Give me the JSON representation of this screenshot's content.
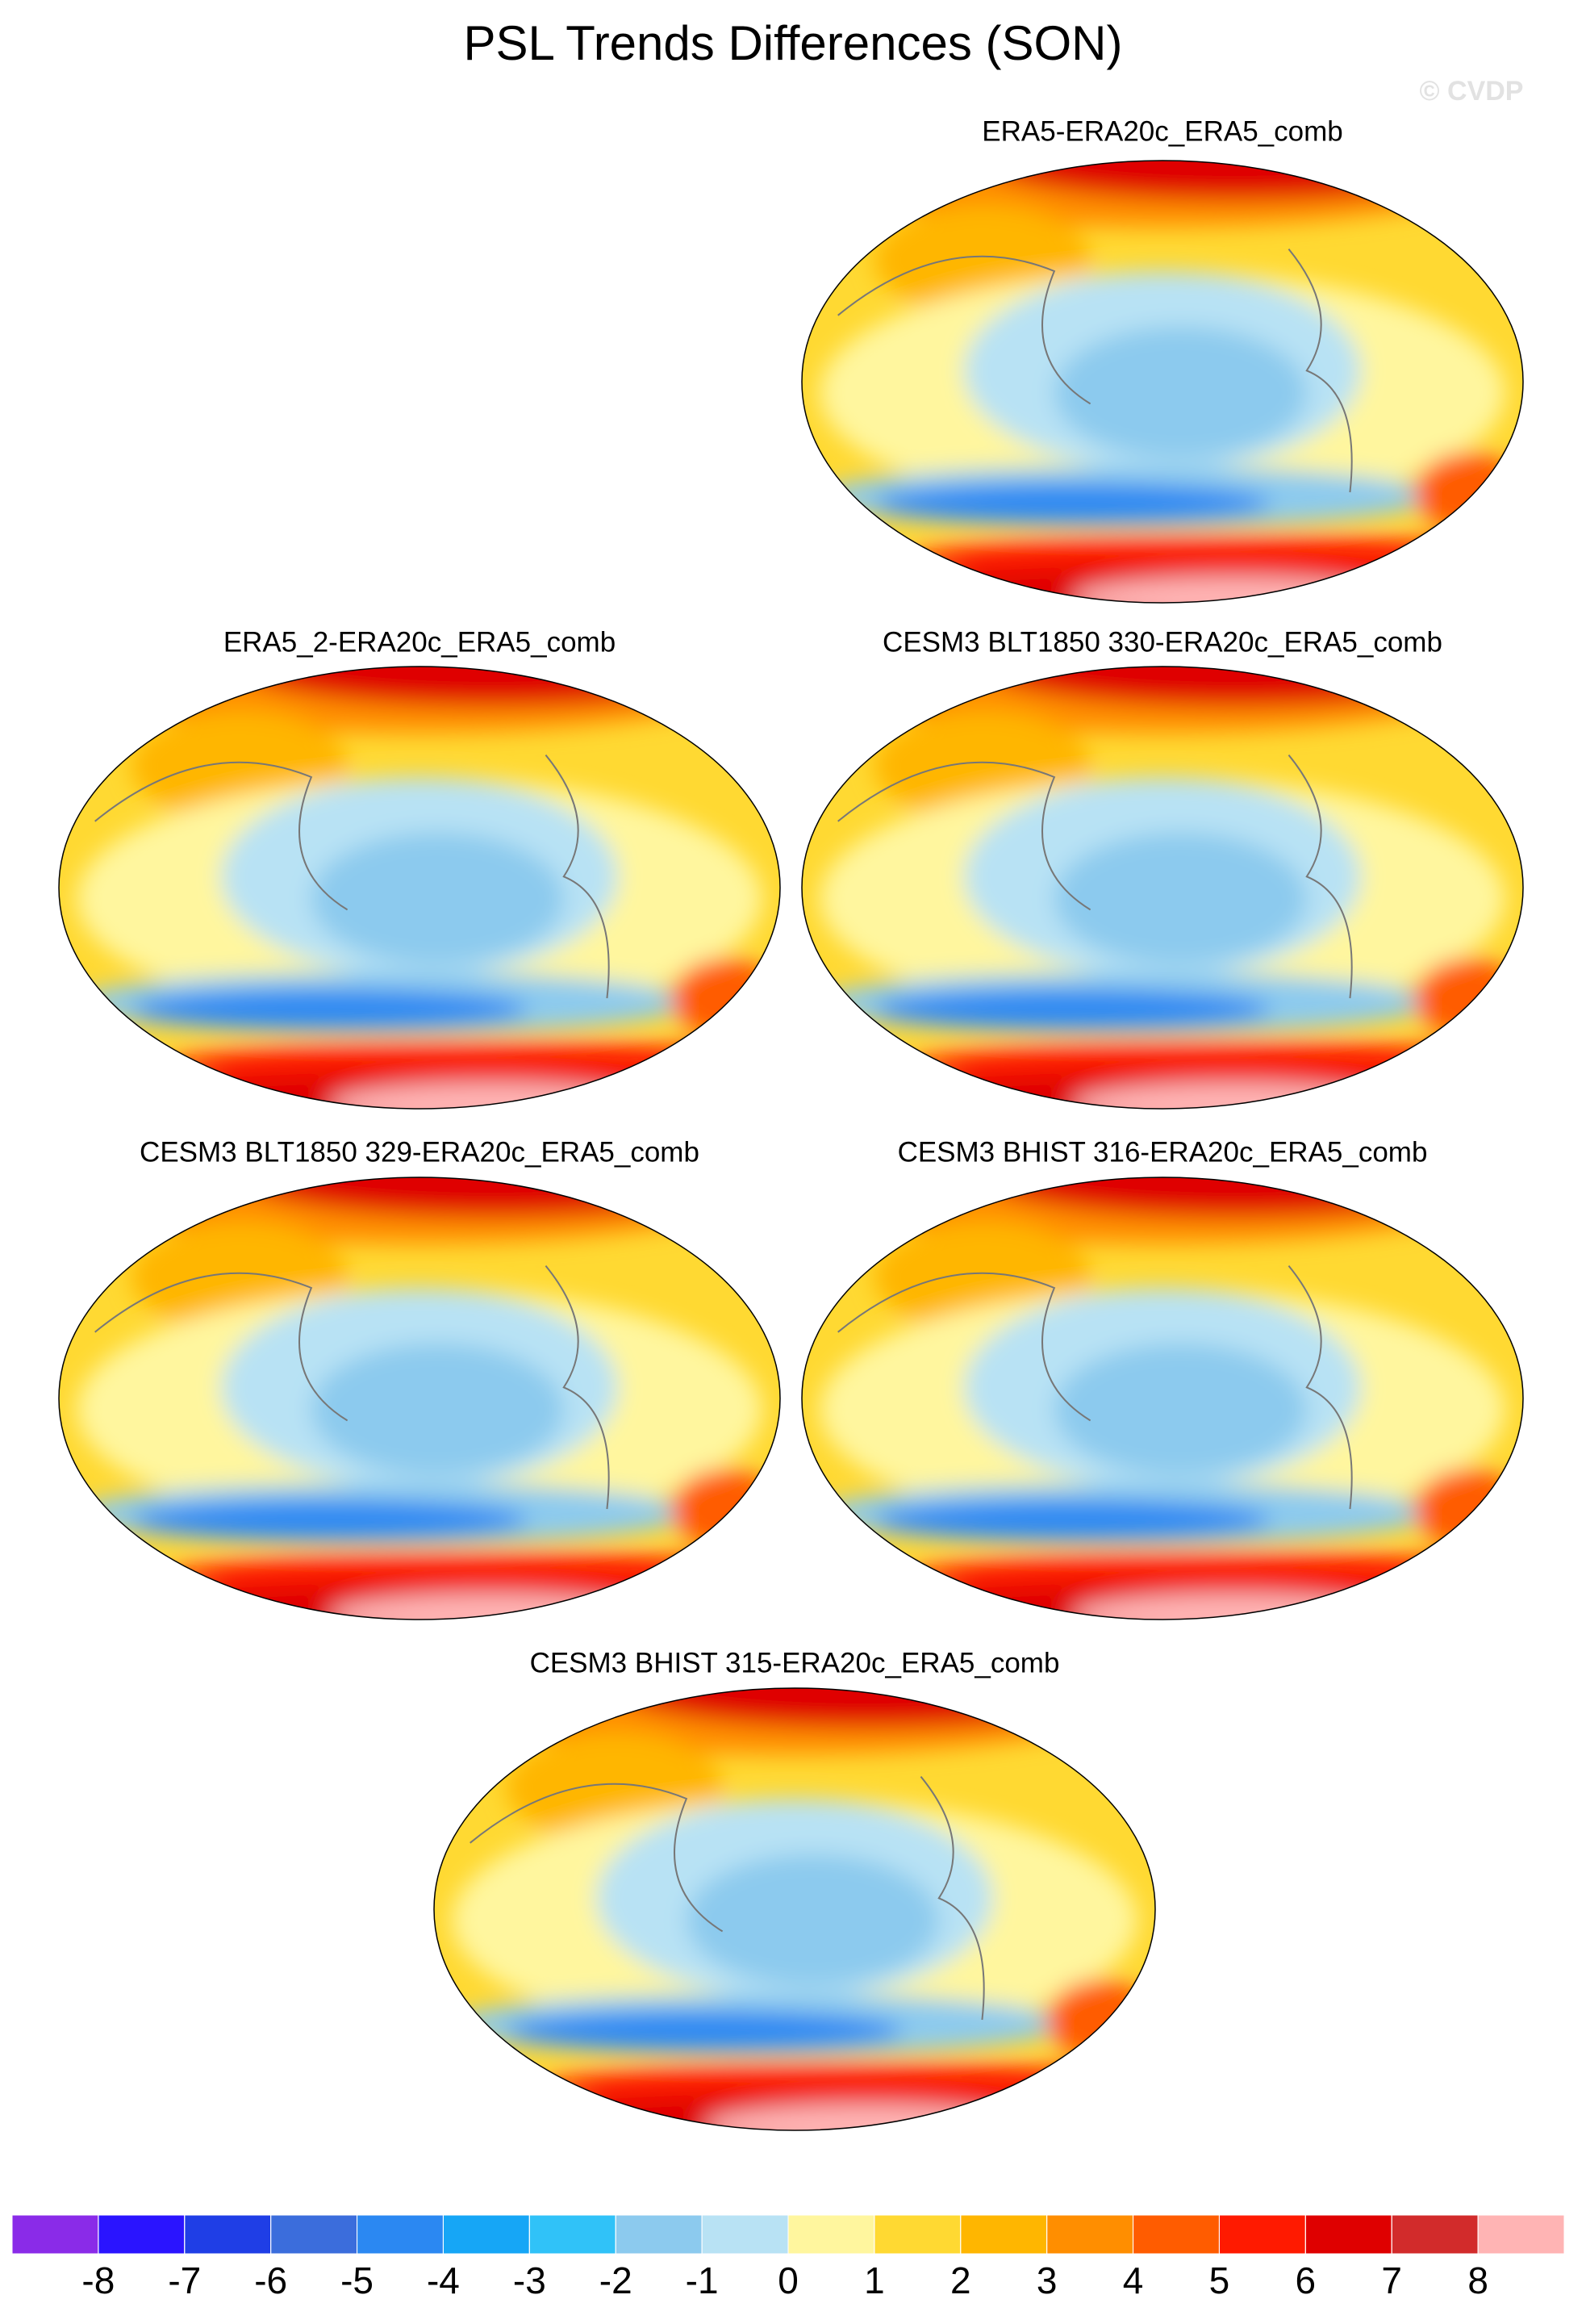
{
  "title": "PSL Trends Differences (SON)",
  "watermark": "© CVDP",
  "panels": [
    {
      "title": "ERA5-ERA20c_ERA5_comb"
    },
    {
      "title": "ERA5_2-ERA20c_ERA5_comb"
    },
    {
      "title": "CESM3 BLT1850 330-ERA20c_ERA5_comb"
    },
    {
      "title": "CESM3 BLT1850 329-ERA20c_ERA5_comb"
    },
    {
      "title": "CESM3 BHIST 316-ERA20c_ERA5_comb"
    },
    {
      "title": "CESM3 BHIST 315-ERA20c_ERA5_comb"
    }
  ],
  "colorbar": {
    "levels": [
      -8,
      -7,
      -6,
      -5,
      -4,
      -3,
      -2,
      -1,
      0,
      1,
      2,
      3,
      4,
      5,
      6,
      7,
      8
    ],
    "colors": [
      "#8a2be8",
      "#2a14ff",
      "#1f3ee6",
      "#3b6ddc",
      "#2b88f2",
      "#16a6f6",
      "#30c2f8",
      "#8ccaee",
      "#b8e2f4",
      "#fff69e",
      "#ffd932",
      "#ffb600",
      "#ff8e00",
      "#ff5c00",
      "#ff1a00",
      "#df0000",
      "#d22b2b",
      "#ffb4b4"
    ]
  }
}
